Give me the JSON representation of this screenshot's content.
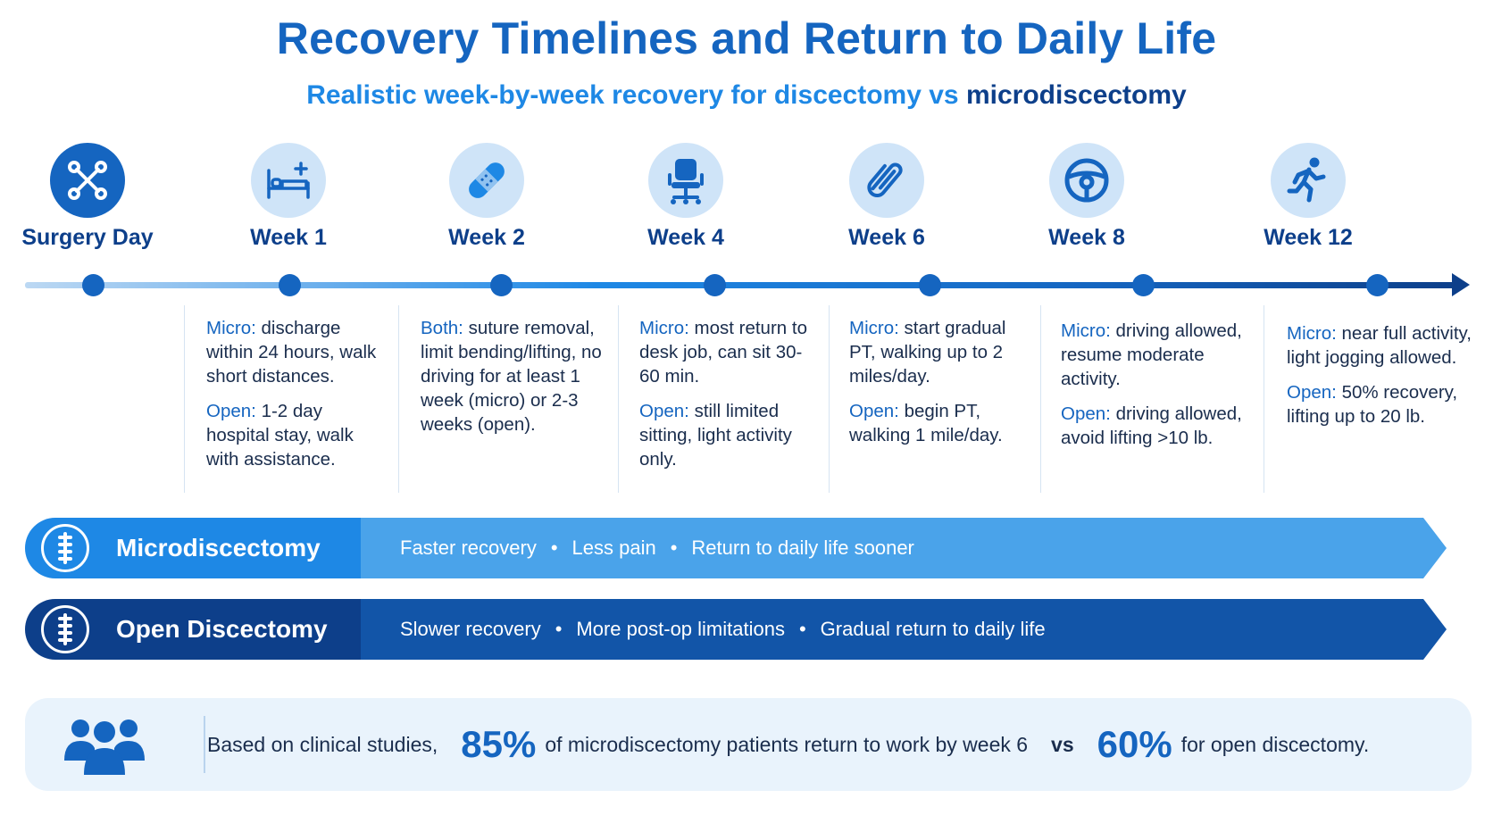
{
  "header": {
    "title": "Recovery Timelines and Return to Daily Life",
    "subtitle_lead": "Realistic week-by-week recovery for discectomy vs",
    "subtitle_strong": "microdiscectomy"
  },
  "stages": [
    {
      "label": "Surgery Day",
      "icon": "surgical-tools-icon"
    },
    {
      "label": "Week 1",
      "icon": "hospital-bed-icon"
    },
    {
      "label": "Week 2",
      "icon": "bandage-icon"
    },
    {
      "label": "Week 4",
      "icon": "office-chair-icon"
    },
    {
      "label": "Week 6",
      "icon": "paperclip-icon"
    },
    {
      "label": "Week 8",
      "icon": "steering-wheel-icon"
    },
    {
      "label": "Week 12",
      "icon": "running-person-icon"
    }
  ],
  "details": [
    {
      "a_label": "Micro:",
      "a_text": "discharge within 24 hours, walk short distances.",
      "b_label": "Open:",
      "b_text": "1-2 day hospital stay, walk with assistance."
    },
    {
      "a_label": "Both:",
      "a_text": "suture removal, limit bending/lifting, no driving for at least 1 week (micro) or 2-3 weeks (open).",
      "b_label": "",
      "b_text": ""
    },
    {
      "a_label": "Micro:",
      "a_text": "most return to desk job, can sit 30-60 min.",
      "b_label": "Open:",
      "b_text": "still limited sitting, light activity only."
    },
    {
      "a_label": "Micro:",
      "a_text": "start gradual PT, walking up to 2 miles/day.",
      "b_label": "Open:",
      "b_text": "begin PT, walking 1 mile/day."
    },
    {
      "a_label": "Micro:",
      "a_text": "driving allowed, resume moderate activity.",
      "b_label": "Open:",
      "b_text": "driving allowed, avoid lifting >10 lb."
    },
    {
      "a_label": "Micro:",
      "a_text": "near full activity, light jogging allowed.",
      "b_label": "Open:",
      "b_text": "50% recovery, lifting up to 20 lb."
    }
  ],
  "bands": {
    "micro": {
      "name": "Microdiscectomy",
      "points": [
        "Faster recovery",
        "Less pain",
        "Return to daily life sooner"
      ],
      "color": "#1e88e5",
      "body_color": "#4aa3ea"
    },
    "open": {
      "name": "Open Discectomy",
      "points": [
        "Slower recovery",
        "More post-op limitations",
        "Gradual return to daily life"
      ],
      "color": "#0d3f8a",
      "body_color": "#1255a8"
    },
    "bullet": "•"
  },
  "stat": {
    "prefix": "Based on clinical studies,",
    "micro_pct": "85%",
    "micro_text": "of microdiscectomy patients return to work by week 6",
    "vs": "vs",
    "open_pct": "60%",
    "open_text": "for open discectomy."
  }
}
